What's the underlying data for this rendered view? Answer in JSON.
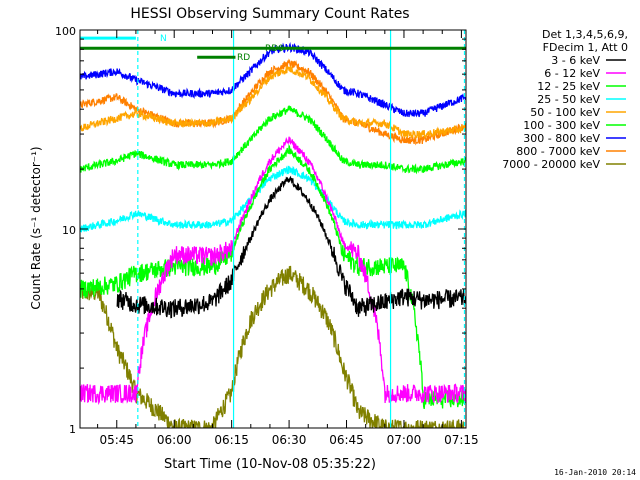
{
  "chart_data": {
    "type": "line",
    "title": "HESSI Observing Summary Count Rates",
    "xlabel": "Start Time (10-Nov-08 05:35:22)",
    "ylabel": "Count Rate (s⁻¹ detector⁻¹)",
    "y_scale": "log",
    "ylim": [
      1,
      100
    ],
    "xlim_minutes": [
      35.4,
      136.2
    ],
    "x_tick_labels": [
      "05:45",
      "06:00",
      "06:15",
      "06:30",
      "06:45",
      "07:00",
      "07:15"
    ],
    "x_tick_minutes": [
      45,
      60,
      75,
      90,
      105,
      120,
      135
    ],
    "y_tick_labels": [
      "1",
      "10",
      "100"
    ],
    "y_tick_values": [
      1,
      10,
      100
    ],
    "footer_date": "16-Jan-2010 20:14",
    "legend": {
      "placement": "right",
      "header_lines": [
        "Det 1,3,4,5,6,9,",
        "FDecim 1, Att 0"
      ]
    },
    "series": [
      {
        "name": "3 - 6 keV",
        "color": "#000000",
        "x": [
          35.4,
          45,
          50,
          60,
          70,
          75,
          80,
          85,
          90,
          95,
          100,
          104,
          108,
          115,
          120,
          125,
          136.2
        ],
        "y": [
          null,
          4.5,
          4.2,
          4.0,
          4.3,
          5.5,
          9,
          14,
          18,
          14,
          9,
          5.5,
          4.0,
          4.3,
          4.6,
          4.4,
          4.5
        ]
      },
      {
        "name": "6 - 12 keV",
        "color": "#ff00ff",
        "x": [
          35.4,
          45,
          50,
          60,
          70,
          75,
          80,
          85,
          90,
          95,
          100,
          104,
          108,
          115,
          120,
          125,
          136.2
        ],
        "y": [
          1.5,
          1.5,
          1.5,
          7.5,
          7.3,
          8.0,
          14,
          22,
          28,
          22,
          14,
          8.5,
          7.5,
          1.5,
          1.5,
          1.5,
          1.5
        ]
      },
      {
        "name": "12 - 25 keV",
        "color": "#00ff00",
        "x": [
          35.4,
          45,
          50,
          60,
          70,
          75,
          80,
          85,
          90,
          95,
          100,
          104,
          108,
          115,
          120,
          125,
          136.2
        ],
        "y": [
          5.0,
          5.3,
          6.0,
          6.5,
          6.5,
          7.5,
          13,
          20,
          25,
          20,
          13,
          7.5,
          6.5,
          6.5,
          6.5,
          1.4,
          1.4
        ]
      },
      {
        "name": "25 - 50 keV",
        "color": "#00ffff",
        "x": [
          35.4,
          45,
          50,
          60,
          70,
          75,
          80,
          85,
          90,
          95,
          100,
          104,
          108,
          115,
          120,
          125,
          136.2
        ],
        "y": [
          10,
          11,
          12,
          10.5,
          10.5,
          11,
          14,
          18,
          20,
          18,
          14,
          11,
          10.5,
          10.5,
          10.5,
          10.5,
          12
        ]
      },
      {
        "name": "50 - 100 keV",
        "color": "#ffa500",
        "x": [
          35.4,
          45,
          50,
          60,
          70,
          75,
          80,
          85,
          90,
          95,
          100,
          104,
          108,
          115,
          120,
          125,
          136.2
        ],
        "y": [
          32,
          36,
          38,
          34,
          34,
          36,
          45,
          58,
          64,
          58,
          45,
          36,
          34,
          34,
          30,
          30,
          32
        ]
      },
      {
        "name": "100 - 300 keV",
        "color": "#00ff00",
        "x": [
          35.4,
          45,
          50,
          60,
          70,
          75,
          80,
          85,
          90,
          95,
          100,
          104,
          108,
          115,
          120,
          125,
          136.2
        ],
        "y": [
          20,
          22,
          24,
          21,
          21,
          22,
          28,
          36,
          40,
          36,
          28,
          22,
          21,
          21,
          20,
          20,
          22
        ]
      },
      {
        "name": "300 - 800 keV",
        "color": "#0000ff",
        "x": [
          35.4,
          45,
          50,
          60,
          70,
          75,
          80,
          85,
          90,
          95,
          100,
          104,
          108,
          115,
          120,
          125,
          136.2
        ],
        "y": [
          58,
          62,
          56,
          48,
          48,
          50,
          62,
          78,
          82,
          78,
          62,
          50,
          48,
          42,
          38,
          38,
          46
        ]
      },
      {
        "name": "800 - 7000 keV",
        "color": "#ff8000",
        "x": [
          35.4,
          45,
          50,
          60,
          70,
          75,
          80,
          85,
          90,
          95,
          100,
          104,
          108,
          115,
          120,
          125,
          136.2
        ],
        "y": [
          42,
          46,
          40,
          34,
          34,
          36,
          48,
          62,
          68,
          62,
          48,
          36,
          34,
          30,
          28,
          28,
          33
        ]
      },
      {
        "name": "7000 - 20000 keV",
        "color": "#808000",
        "x": [
          35.4,
          40,
          45,
          50,
          60,
          70,
          75,
          80,
          85,
          90,
          95,
          100,
          104,
          108,
          115,
          120,
          125,
          136.2
        ],
        "y": [
          4.8,
          4.8,
          2.5,
          1.5,
          1.0,
          1.0,
          1.5,
          3.5,
          5.0,
          6.0,
          5.0,
          3.5,
          2.0,
          1.2,
          1.0,
          1.0,
          1.0,
          1.0
        ]
      }
    ],
    "state_bars": [
      {
        "label": "N",
        "color": "#00ffff",
        "x_start": 35.4,
        "x_end": 50.0,
        "y": 91
      },
      {
        "label": "RD0",
        "color": "#008000",
        "x_start": 35.4,
        "x_end": 136.2,
        "y": 81
      },
      {
        "label": "RD",
        "color": "#008000",
        "x_start": 66,
        "x_end": 76,
        "y": 73
      }
    ],
    "vertical_markers": [
      {
        "color": "#00ffff",
        "x": 50.5,
        "style": "dashed"
      },
      {
        "color": "#00ffff",
        "x": 75.5,
        "style": "solid"
      },
      {
        "color": "#00ffff",
        "x": 116.5,
        "style": "solid"
      },
      {
        "color": "#00ffff",
        "x": 135.8,
        "style": "dashed"
      }
    ]
  }
}
